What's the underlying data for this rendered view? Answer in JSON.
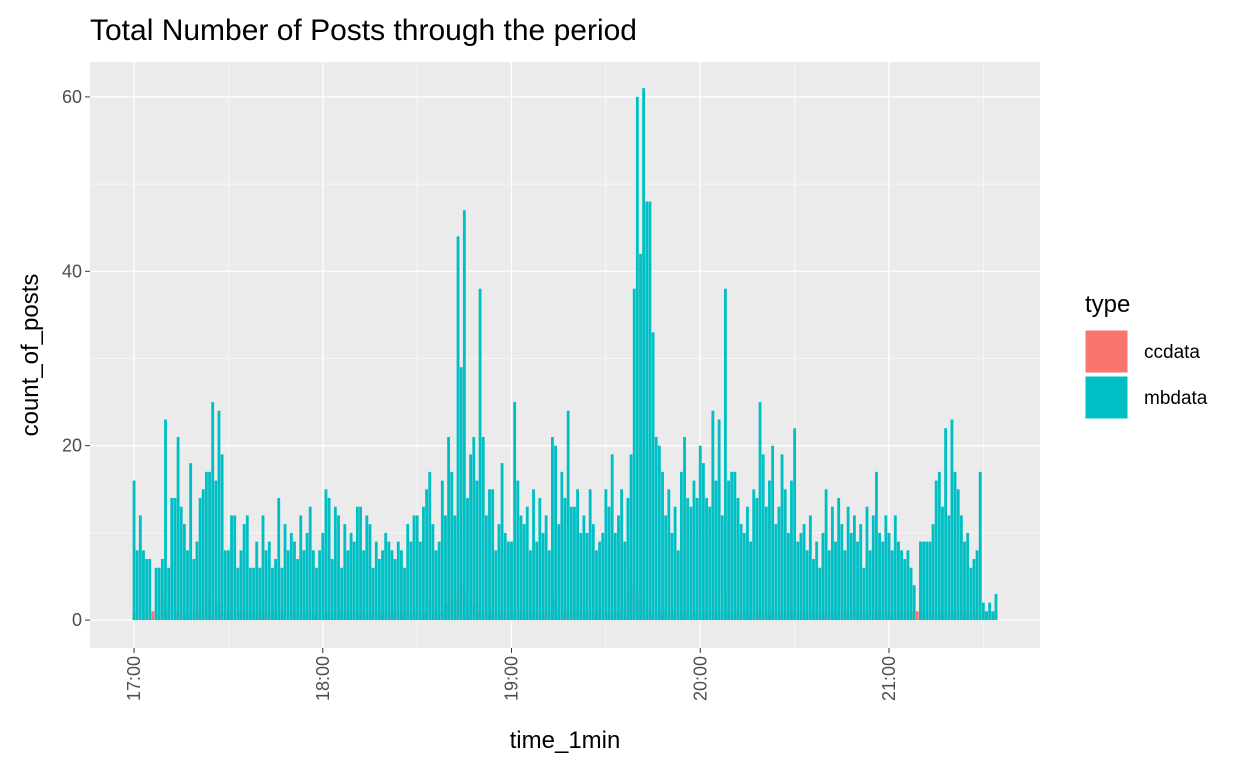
{
  "chart_data": {
    "type": "bar",
    "title": "Total Number of Posts through the period",
    "x_label": "time_1min",
    "y_label": "count_of_posts",
    "legend_title": "type",
    "legend_position": "right",
    "grid": true,
    "xlim": [
      "16:46",
      "21:48"
    ],
    "ylim": [
      -3.2,
      64
    ],
    "yticks": [
      0,
      20,
      40,
      60
    ],
    "y_minor_ticks": [
      10,
      30,
      50
    ],
    "xticks": [
      "17:00",
      "18:00",
      "19:00",
      "20:00",
      "21:00"
    ],
    "x_minor_ticks": [
      "17:30",
      "18:30",
      "19:30",
      "20:30",
      "21:30"
    ],
    "x": [
      "17:00",
      "17:01",
      "17:02",
      "17:03",
      "17:04",
      "17:05",
      "17:06",
      "17:07",
      "17:08",
      "17:09",
      "17:10",
      "17:11",
      "17:12",
      "17:13",
      "17:14",
      "17:15",
      "17:16",
      "17:17",
      "17:18",
      "17:19",
      "17:20",
      "17:21",
      "17:22",
      "17:23",
      "17:24",
      "17:25",
      "17:26",
      "17:27",
      "17:28",
      "17:29",
      "17:30",
      "17:31",
      "17:32",
      "17:33",
      "17:34",
      "17:35",
      "17:36",
      "17:37",
      "17:38",
      "17:39",
      "17:40",
      "17:41",
      "17:42",
      "17:43",
      "17:44",
      "17:45",
      "17:46",
      "17:47",
      "17:48",
      "17:49",
      "17:50",
      "17:51",
      "17:52",
      "17:53",
      "17:54",
      "17:55",
      "17:56",
      "17:57",
      "17:58",
      "17:59",
      "18:00",
      "18:01",
      "18:02",
      "18:03",
      "18:04",
      "18:05",
      "18:06",
      "18:07",
      "18:08",
      "18:09",
      "18:10",
      "18:11",
      "18:12",
      "18:13",
      "18:14",
      "18:15",
      "18:16",
      "18:17",
      "18:18",
      "18:19",
      "18:20",
      "18:21",
      "18:22",
      "18:23",
      "18:24",
      "18:25",
      "18:26",
      "18:27",
      "18:28",
      "18:29",
      "18:30",
      "18:31",
      "18:32",
      "18:33",
      "18:34",
      "18:35",
      "18:36",
      "18:37",
      "18:38",
      "18:39",
      "18:40",
      "18:41",
      "18:42",
      "18:43",
      "18:44",
      "18:45",
      "18:46",
      "18:47",
      "18:48",
      "18:49",
      "18:50",
      "18:51",
      "18:52",
      "18:53",
      "18:54",
      "18:55",
      "18:56",
      "18:57",
      "18:58",
      "18:59",
      "19:00",
      "19:01",
      "19:02",
      "19:03",
      "19:04",
      "19:05",
      "19:06",
      "19:07",
      "19:08",
      "19:09",
      "19:10",
      "19:11",
      "19:12",
      "19:13",
      "19:14",
      "19:15",
      "19:16",
      "19:17",
      "19:18",
      "19:19",
      "19:20",
      "19:21",
      "19:22",
      "19:23",
      "19:24",
      "19:25",
      "19:26",
      "19:27",
      "19:28",
      "19:29",
      "19:30",
      "19:31",
      "19:32",
      "19:33",
      "19:34",
      "19:35",
      "19:36",
      "19:37",
      "19:38",
      "19:39",
      "19:40",
      "19:41",
      "19:42",
      "19:43",
      "19:44",
      "19:45",
      "19:46",
      "19:47",
      "19:48",
      "19:49",
      "19:50",
      "19:51",
      "19:52",
      "19:53",
      "19:54",
      "19:55",
      "19:56",
      "19:57",
      "19:58",
      "19:59",
      "20:00",
      "20:01",
      "20:02",
      "20:03",
      "20:04",
      "20:05",
      "20:06",
      "20:07",
      "20:08",
      "20:09",
      "20:10",
      "20:11",
      "20:12",
      "20:13",
      "20:14",
      "20:15",
      "20:16",
      "20:17",
      "20:18",
      "20:19",
      "20:20",
      "20:21",
      "20:22",
      "20:23",
      "20:24",
      "20:25",
      "20:26",
      "20:27",
      "20:28",
      "20:29",
      "20:30",
      "20:31",
      "20:32",
      "20:33",
      "20:34",
      "20:35",
      "20:36",
      "20:37",
      "20:38",
      "20:39",
      "20:40",
      "20:41",
      "20:42",
      "20:43",
      "20:44",
      "20:45",
      "20:46",
      "20:47",
      "20:48",
      "20:49",
      "20:50",
      "20:51",
      "20:52",
      "20:53",
      "20:54",
      "20:55",
      "20:56",
      "20:57",
      "20:58",
      "20:59",
      "21:00",
      "21:01",
      "21:02",
      "21:03",
      "21:04",
      "21:05",
      "21:06",
      "21:07",
      "21:08",
      "21:09",
      "21:10",
      "21:11",
      "21:12",
      "21:13",
      "21:14",
      "21:15",
      "21:16",
      "21:17",
      "21:18",
      "21:19",
      "21:20",
      "21:21",
      "21:22",
      "21:23",
      "21:24",
      "21:25",
      "21:26",
      "21:27",
      "21:28",
      "21:29",
      "21:30",
      "21:31",
      "21:32",
      "21:33",
      "21:34"
    ],
    "series": [
      {
        "name": "ccdata",
        "color": "#F8766D",
        "values": [
          1,
          1,
          null,
          1,
          null,
          1,
          1,
          null,
          1,
          3,
          1,
          1,
          null,
          1,
          1,
          1,
          1,
          null,
          1,
          1,
          1,
          1,
          2,
          1,
          3,
          1,
          2,
          2,
          1,
          1,
          1,
          1,
          null,
          1,
          1,
          1,
          1,
          1,
          null,
          1,
          1,
          1,
          2,
          1,
          1,
          1,
          1,
          1,
          1,
          null,
          1,
          1,
          1,
          1,
          1,
          1,
          1,
          1,
          1,
          null,
          1,
          1,
          1,
          1,
          null,
          1,
          1,
          1,
          1,
          1,
          1,
          1,
          1,
          1,
          1,
          1,
          1,
          1,
          1,
          1,
          1,
          1,
          1,
          2,
          1,
          1,
          1,
          1,
          1,
          1,
          1,
          1,
          1,
          1,
          2,
          1,
          1,
          1,
          1,
          2,
          2,
          3,
          2,
          3,
          4,
          3,
          1,
          2,
          2,
          1,
          1,
          1,
          1,
          1,
          1,
          1,
          1,
          1,
          1,
          1,
          1,
          1,
          1,
          1,
          1,
          1,
          1,
          1,
          1,
          1,
          1,
          1,
          1,
          3,
          2,
          1,
          1,
          1,
          1,
          1,
          1,
          1,
          1,
          2,
          1,
          1,
          1,
          1,
          1,
          1,
          1,
          1,
          1,
          1,
          1,
          1,
          2,
          3,
          6,
          4,
          3,
          2,
          3,
          2,
          1,
          1,
          1,
          1,
          1,
          1,
          1,
          1,
          1,
          1,
          1,
          1,
          1,
          1,
          1,
          1,
          1,
          1,
          1,
          1,
          1,
          2,
          1,
          1,
          3,
          1,
          1,
          1,
          1,
          1,
          1,
          1,
          1,
          1,
          1,
          1,
          1,
          1,
          1,
          1,
          1,
          1,
          1,
          1,
          1,
          1,
          1,
          1,
          1,
          1,
          1,
          1,
          1,
          1,
          1,
          1,
          1,
          1,
          1,
          1,
          1,
          1,
          1,
          1,
          1,
          1,
          1,
          1,
          1,
          1,
          1,
          1,
          1,
          1,
          1,
          1,
          1,
          1,
          1,
          2,
          1,
          1,
          1,
          1,
          1,
          1,
          1,
          1,
          1,
          1,
          1,
          1,
          1,
          1,
          1,
          1,
          1,
          1,
          1,
          1,
          1,
          1,
          1,
          1,
          1,
          1,
          1,
          1,
          1,
          1,
          1
        ]
      },
      {
        "name": "mbdata",
        "color": "#00BFC4",
        "values": [
          16,
          8,
          12,
          8,
          7,
          7,
          null,
          6,
          6,
          7,
          23,
          6,
          14,
          14,
          21,
          13,
          11,
          8,
          18,
          7,
          9,
          14,
          15,
          17,
          17,
          25,
          16,
          24,
          19,
          8,
          8,
          12,
          12,
          6,
          8,
          11,
          12,
          6,
          6,
          9,
          6,
          12,
          8,
          9,
          6,
          7,
          14,
          6,
          11,
          8,
          10,
          9,
          7,
          12,
          8,
          10,
          13,
          8,
          6,
          8,
          10,
          15,
          14,
          7,
          13,
          12,
          6,
          11,
          8,
          10,
          9,
          13,
          13,
          8,
          12,
          11,
          6,
          9,
          7,
          8,
          10,
          9,
          8,
          7,
          9,
          8,
          6,
          11,
          9,
          12,
          12,
          9,
          13,
          15,
          17,
          11,
          8,
          9,
          16,
          12,
          21,
          17,
          12,
          44,
          29,
          47,
          14,
          19,
          21,
          16,
          38,
          21,
          12,
          15,
          15,
          8,
          11,
          18,
          10,
          9,
          9,
          25,
          16,
          12,
          11,
          13,
          8,
          15,
          9,
          14,
          10,
          12,
          8,
          21,
          20,
          11,
          17,
          14,
          24,
          13,
          13,
          15,
          10,
          12,
          10,
          15,
          11,
          8,
          9,
          10,
          15,
          13,
          19,
          10,
          12,
          15,
          9,
          14,
          19,
          38,
          60,
          42,
          61,
          48,
          48,
          33,
          21,
          20,
          17,
          12,
          15,
          10,
          13,
          8,
          17,
          21,
          14,
          13,
          16,
          14,
          20,
          18,
          14,
          13,
          24,
          16,
          23,
          12,
          38,
          16,
          17,
          17,
          14,
          11,
          10,
          13,
          9,
          15,
          14,
          25,
          19,
          13,
          16,
          20,
          11,
          13,
          19,
          15,
          10,
          16,
          22,
          9,
          10,
          11,
          8,
          12,
          7,
          9,
          6,
          10,
          15,
          8,
          13,
          9,
          14,
          11,
          8,
          13,
          10,
          12,
          9,
          11,
          6,
          13,
          8,
          12,
          17,
          10,
          9,
          12,
          10,
          8,
          12,
          9,
          8,
          7,
          8,
          6,
          4,
          null,
          9,
          9,
          9,
          9,
          11,
          16,
          17,
          13,
          22,
          12,
          23,
          17,
          15,
          12,
          9,
          10,
          6,
          7,
          8,
          17,
          2,
          1,
          2,
          1,
          3
        ]
      }
    ]
  }
}
